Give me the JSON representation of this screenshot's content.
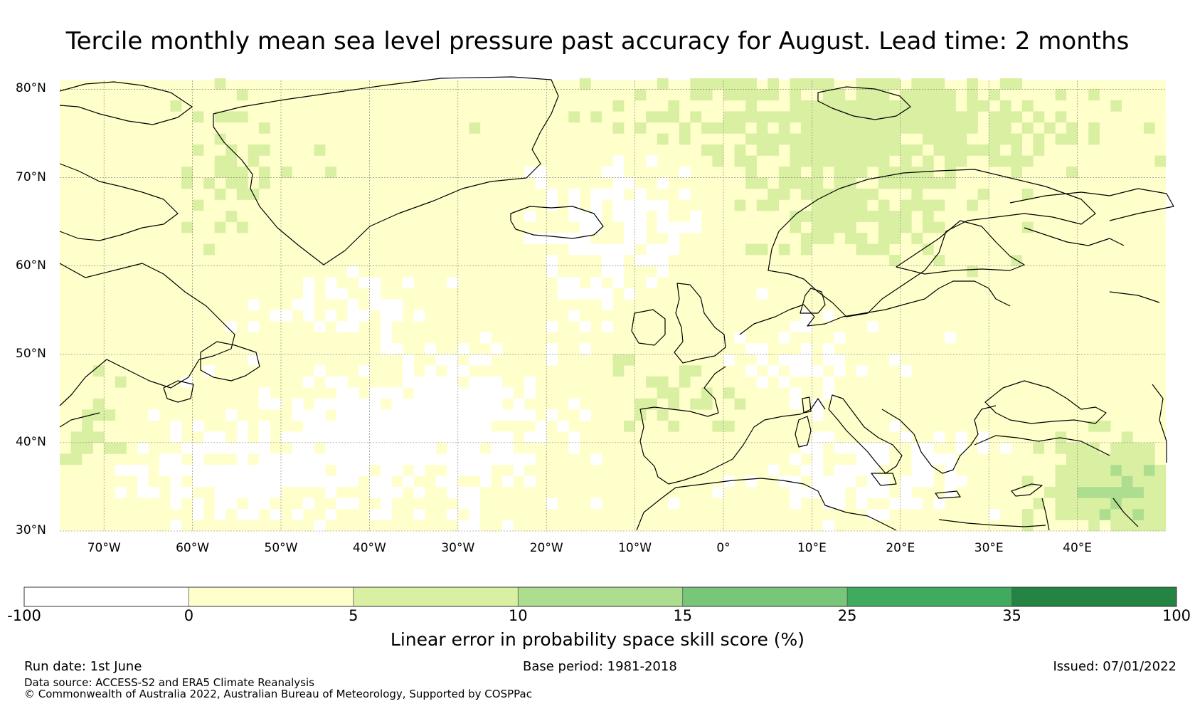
{
  "title": "Tercile monthly mean sea level pressure past accuracy for August. Lead time: 2 months",
  "map": {
    "lat_labels": [
      "80°N",
      "70°N",
      "60°N",
      "50°N",
      "40°N",
      "30°N"
    ],
    "lat_values": [
      80,
      70,
      60,
      50,
      40,
      30
    ],
    "lon_labels": [
      "70°W",
      "60°W",
      "50°W",
      "40°W",
      "30°W",
      "20°W",
      "10°W",
      "0°",
      "10°E",
      "20°E",
      "30°E",
      "40°E"
    ],
    "lon_values": [
      -70,
      -60,
      -50,
      -40,
      -30,
      -20,
      -10,
      0,
      10,
      20,
      30,
      40
    ],
    "extent": {
      "lon_min": -75,
      "lon_max": 50,
      "lat_min": 30,
      "lat_max": 81
    },
    "projection": "PlateCarree",
    "gridlines": true
  },
  "colorbar": {
    "bounds": [
      "-100",
      "0",
      "5",
      "10",
      "15",
      "25",
      "35",
      "100"
    ],
    "colors": [
      "#ffffff",
      "#ffffcc",
      "#d9f0a3",
      "#addd8e",
      "#78c679",
      "#41ab5d",
      "#238443"
    ],
    "label": "Linear error in probability space skill score (%)"
  },
  "footer": {
    "run_date": "Run date: 1st June",
    "base_period": "Base period: 1981-2018",
    "issued": "Issued: 07/01/2022",
    "data_source": "Data source: ACCESS-S2 and ERA5 Climate Reanalysis",
    "copyright": "© Commonwealth of Australia 2022, Australian Bureau of Meteorology, Supported by COSPPac"
  }
}
